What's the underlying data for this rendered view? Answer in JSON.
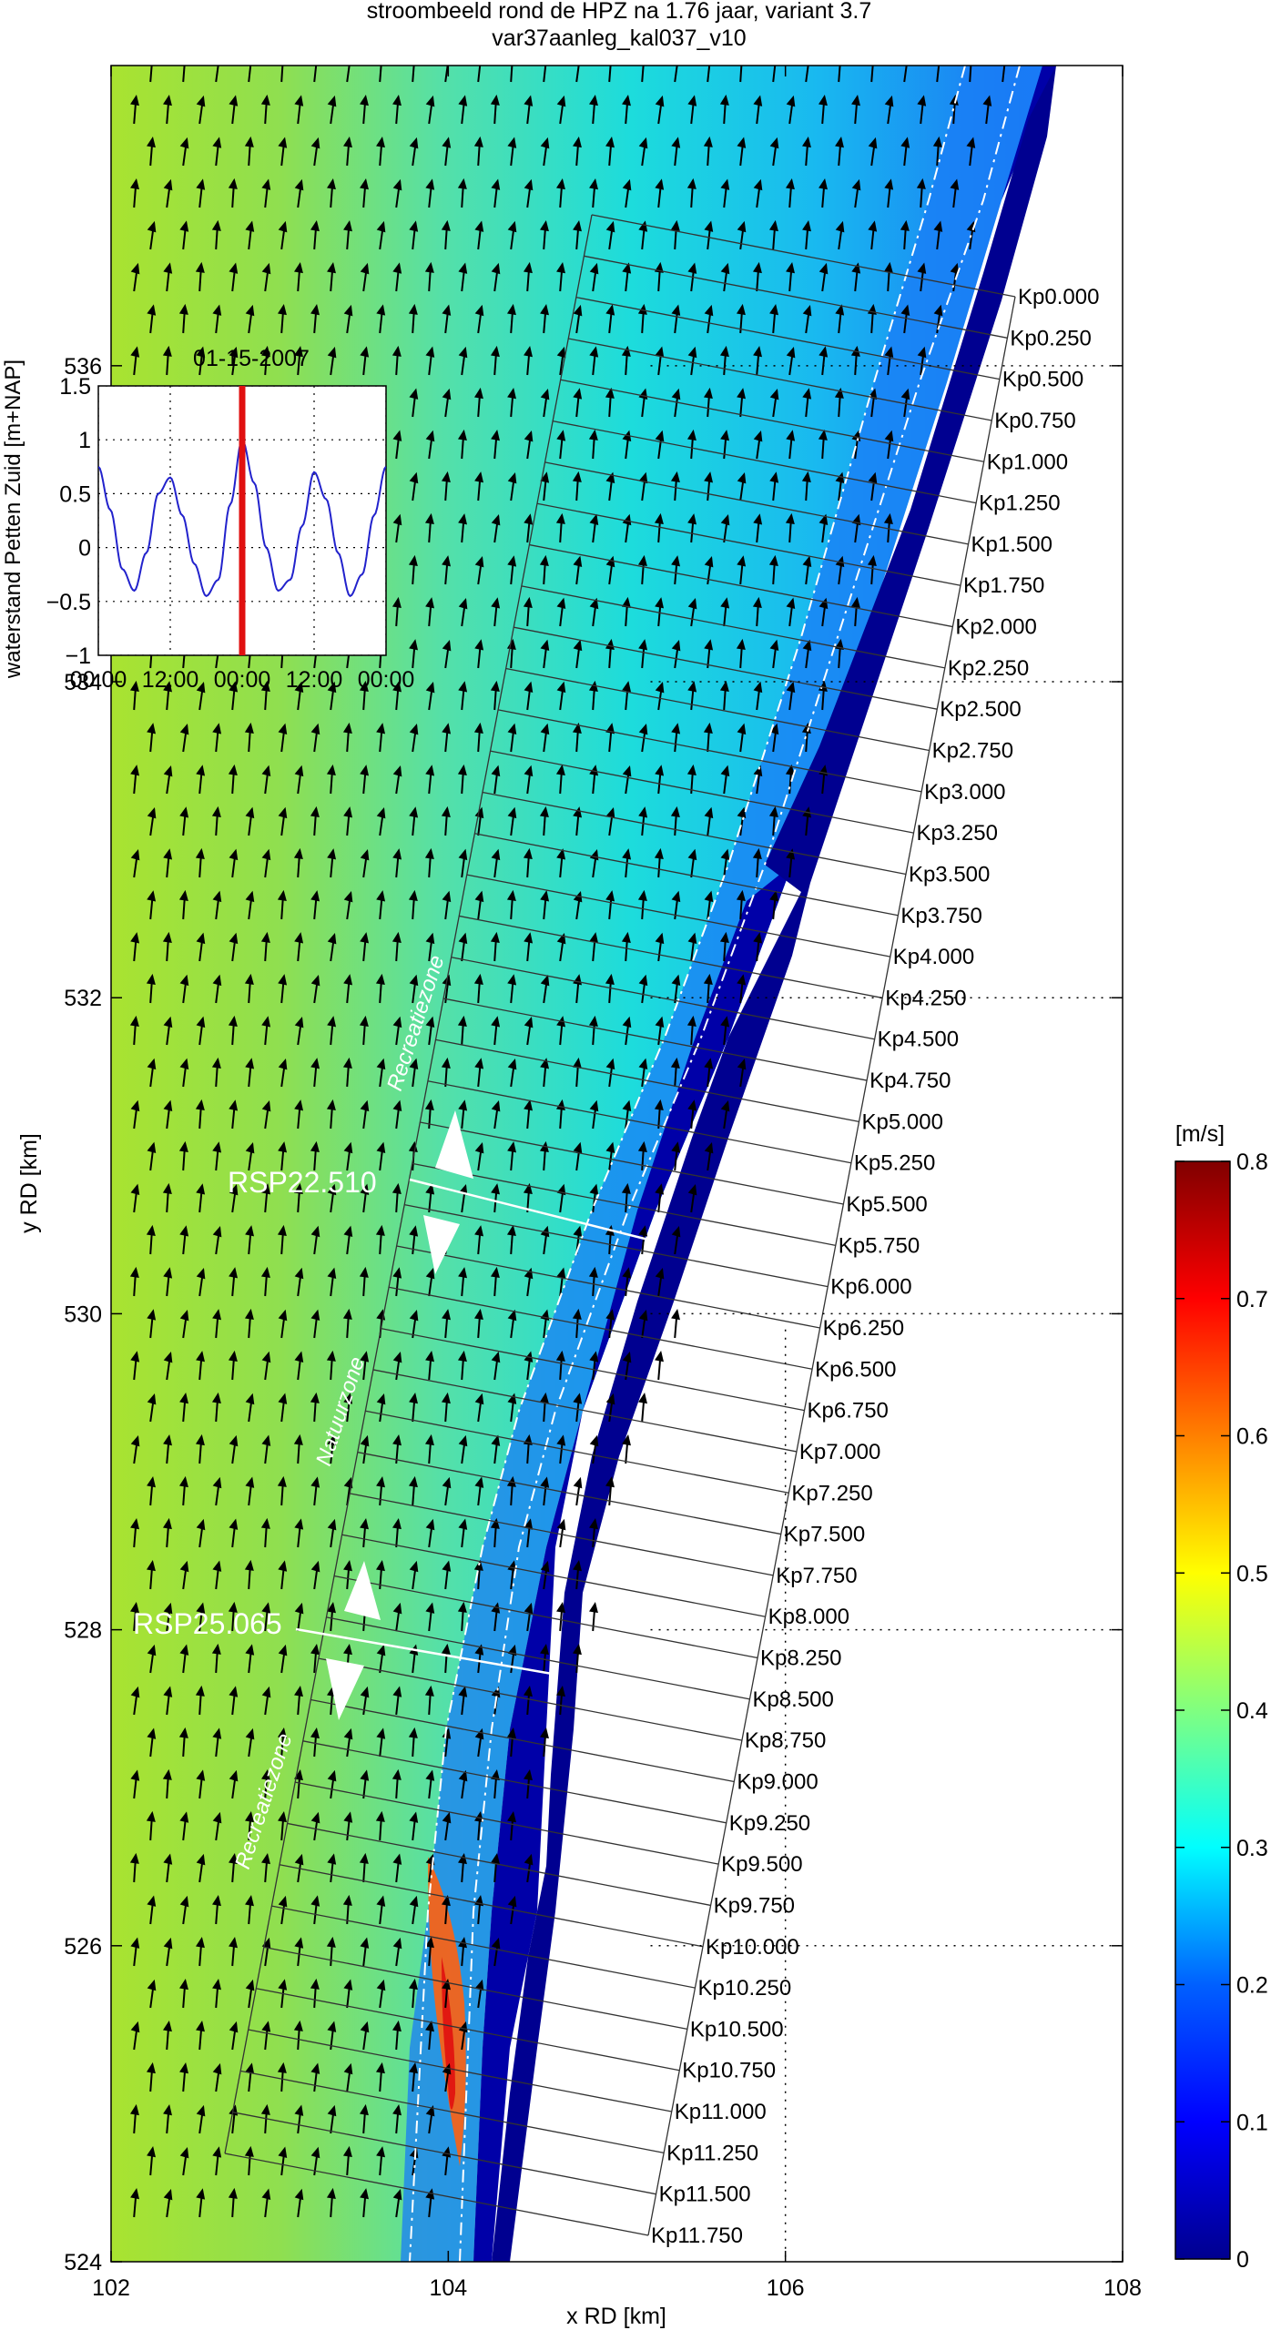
{
  "title": {
    "line1": "stroombeeld  rond de HPZ na 1.76 jaar, variant 3.7",
    "line2": "var37aanleg_kal037_v10"
  },
  "chart_data": [
    {
      "type": "heatmap",
      "title": "stroombeeld  rond de HPZ na 1.76 jaar, variant 3.7 / var37aanleg_kal037_v10",
      "xlabel": "x RD [km]",
      "ylabel": "y RD [km]",
      "xlim": [
        102,
        108
      ],
      "ylim": [
        524,
        537.9
      ],
      "xticks": [
        102,
        104,
        106,
        108
      ],
      "yticks": [
        524,
        526,
        528,
        530,
        532,
        534,
        536
      ],
      "grid": "dotted (partial, on land side)",
      "colorbar": {
        "label": "[m/s]",
        "min": 0,
        "max": 0.8,
        "ticks": [
          0,
          0.1,
          0.2,
          0.3,
          0.4,
          0.5,
          0.6,
          0.7,
          0.8
        ],
        "colormap": "jet"
      },
      "transect_labels": [
        "Kp0.000",
        "Kp0.250",
        "Kp0.500",
        "Kp0.750",
        "Kp1.000",
        "Kp1.250",
        "Kp1.500",
        "Kp1.750",
        "Kp2.000",
        "Kp2.250",
        "Kp2.500",
        "Kp2.750",
        "Kp3.000",
        "Kp3.250",
        "Kp3.500",
        "Kp3.750",
        "Kp4.000",
        "Kp4.250",
        "Kp4.500",
        "Kp4.750",
        "Kp5.000",
        "Kp5.250",
        "Kp5.500",
        "Kp5.750",
        "Kp6.000",
        "Kp6.250",
        "Kp6.500",
        "Kp6.750",
        "Kp7.000",
        "Kp7.250",
        "Kp7.500",
        "Kp7.750",
        "Kp8.000",
        "Kp8.250",
        "Kp8.500",
        "Kp8.750",
        "Kp9.000",
        "Kp9.250",
        "Kp9.500",
        "Kp9.750",
        "Kp10.000",
        "Kp10.250",
        "Kp10.500",
        "Kp10.750",
        "Kp11.000",
        "Kp11.250",
        "Kp11.500",
        "Kp11.750"
      ],
      "annotations": [
        "RSP22.510",
        "RSP25.065",
        "Recreatiezone",
        "Natuurzone",
        "Recreatiezone"
      ]
    },
    {
      "type": "line",
      "title": "01-15-2007",
      "ylabel": "waterstand Petten Zuid [m+NAP]",
      "xlabel": "",
      "x_tick_labels": [
        "00:00",
        "12:00",
        "00:00",
        "12:00",
        "00:00"
      ],
      "ylim": [
        -1,
        1.5
      ],
      "yticks": [
        -1,
        -0.5,
        0,
        0.5,
        1,
        1.5
      ],
      "ytick_labels": [
        "−1",
        "−0.5",
        "0",
        "0.5",
        "1",
        "1.5"
      ],
      "grid": true,
      "series": [
        {
          "x_hours": [
            0,
            2,
            4,
            6,
            8,
            10,
            12,
            14,
            16,
            18,
            20,
            22,
            24,
            26,
            28,
            30,
            32,
            34,
            36,
            38,
            40,
            42,
            44,
            46,
            48
          ],
          "values": [
            0.75,
            0.35,
            -0.2,
            -0.4,
            -0.05,
            0.5,
            0.65,
            0.3,
            -0.15,
            -0.45,
            -0.3,
            0.4,
            1.0,
            0.6,
            0.0,
            -0.4,
            -0.3,
            0.2,
            0.7,
            0.45,
            -0.05,
            -0.45,
            -0.25,
            0.3,
            0.75
          ]
        }
      ],
      "current_time_hour": 24,
      "line_color": "#2222cc",
      "marker_color": "#e01010"
    }
  ],
  "colors": {
    "vel_colormap": [
      "#00008f",
      "#0000ff",
      "#0080ff",
      "#00ffff",
      "#80ff80",
      "#ffff00",
      "#ff8000",
      "#ff0000",
      "#800000"
    ],
    "land": "#ffffff",
    "axis": "#000000"
  }
}
